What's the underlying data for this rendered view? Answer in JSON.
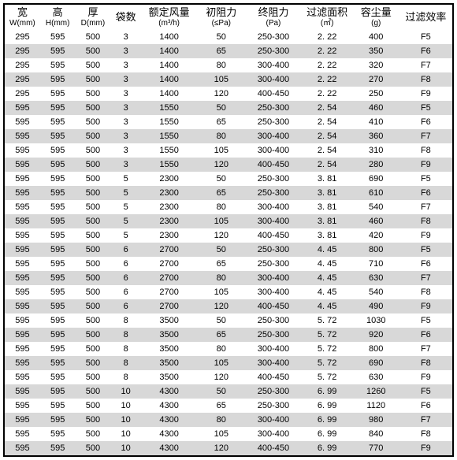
{
  "table": {
    "row_odd_bg": "#ffffff",
    "row_even_bg": "#d8d8d8",
    "border_color": "#000000",
    "columns": [
      {
        "key": "w",
        "cn": "宽",
        "sub": "W(mm)"
      },
      {
        "key": "h",
        "cn": "高",
        "sub": "H(mm)"
      },
      {
        "key": "d",
        "cn": "厚",
        "sub": "D(mm)"
      },
      {
        "key": "bags",
        "cn": "袋数",
        "sub": ""
      },
      {
        "key": "flow",
        "cn": "额定风量",
        "sub": "(m³/h)"
      },
      {
        "key": "ires",
        "cn": "初阻力",
        "sub": "(≤Pa)"
      },
      {
        "key": "fres",
        "cn": "终阻力",
        "sub": "(Pa)"
      },
      {
        "key": "area",
        "cn": "过滤面积",
        "sub": "(㎡)"
      },
      {
        "key": "dust",
        "cn": "容尘量",
        "sub": "(g)"
      },
      {
        "key": "eff",
        "cn": "过滤效率",
        "sub": ""
      }
    ],
    "rows": [
      [
        "295",
        "595",
        "500",
        "3",
        "1400",
        "50",
        "250-300",
        "2. 22",
        "400",
        "F5"
      ],
      [
        "295",
        "595",
        "500",
        "3",
        "1400",
        "65",
        "250-300",
        "2. 22",
        "350",
        "F6"
      ],
      [
        "295",
        "595",
        "500",
        "3",
        "1400",
        "80",
        "300-400",
        "2. 22",
        "320",
        "F7"
      ],
      [
        "295",
        "595",
        "500",
        "3",
        "1400",
        "105",
        "300-400",
        "2. 22",
        "270",
        "F8"
      ],
      [
        "295",
        "595",
        "500",
        "3",
        "1400",
        "120",
        "400-450",
        "2. 22",
        "250",
        "F9"
      ],
      [
        "595",
        "595",
        "500",
        "3",
        "1550",
        "50",
        "250-300",
        "2. 54",
        "460",
        "F5"
      ],
      [
        "595",
        "595",
        "500",
        "3",
        "1550",
        "65",
        "250-300",
        "2. 54",
        "410",
        "F6"
      ],
      [
        "595",
        "595",
        "500",
        "3",
        "1550",
        "80",
        "300-400",
        "2. 54",
        "360",
        "F7"
      ],
      [
        "595",
        "595",
        "500",
        "3",
        "1550",
        "105",
        "300-400",
        "2. 54",
        "310",
        "F8"
      ],
      [
        "595",
        "595",
        "500",
        "3",
        "1550",
        "120",
        "400-450",
        "2. 54",
        "280",
        "F9"
      ],
      [
        "595",
        "595",
        "500",
        "5",
        "2300",
        "50",
        "250-300",
        "3. 81",
        "690",
        "F5"
      ],
      [
        "595",
        "595",
        "500",
        "5",
        "2300",
        "65",
        "250-300",
        "3. 81",
        "610",
        "F6"
      ],
      [
        "595",
        "595",
        "500",
        "5",
        "2300",
        "80",
        "300-400",
        "3. 81",
        "540",
        "F7"
      ],
      [
        "595",
        "595",
        "500",
        "5",
        "2300",
        "105",
        "300-400",
        "3. 81",
        "460",
        "F8"
      ],
      [
        "595",
        "595",
        "500",
        "5",
        "2300",
        "120",
        "400-450",
        "3. 81",
        "420",
        "F9"
      ],
      [
        "595",
        "595",
        "500",
        "6",
        "2700",
        "50",
        "250-300",
        "4. 45",
        "800",
        "F5"
      ],
      [
        "595",
        "595",
        "500",
        "6",
        "2700",
        "65",
        "250-300",
        "4. 45",
        "710",
        "F6"
      ],
      [
        "595",
        "595",
        "500",
        "6",
        "2700",
        "80",
        "300-400",
        "4. 45",
        "630",
        "F7"
      ],
      [
        "595",
        "595",
        "500",
        "6",
        "2700",
        "105",
        "300-400",
        "4. 45",
        "540",
        "F8"
      ],
      [
        "595",
        "595",
        "500",
        "6",
        "2700",
        "120",
        "400-450",
        "4. 45",
        "490",
        "F9"
      ],
      [
        "595",
        "595",
        "500",
        "8",
        "3500",
        "50",
        "250-300",
        "5. 72",
        "1030",
        "F5"
      ],
      [
        "595",
        "595",
        "500",
        "8",
        "3500",
        "65",
        "250-300",
        "5. 72",
        "920",
        "F6"
      ],
      [
        "595",
        "595",
        "500",
        "8",
        "3500",
        "80",
        "300-400",
        "5. 72",
        "800",
        "F7"
      ],
      [
        "595",
        "595",
        "500",
        "8",
        "3500",
        "105",
        "300-400",
        "5. 72",
        "690",
        "F8"
      ],
      [
        "595",
        "595",
        "500",
        "8",
        "3500",
        "120",
        "400-450",
        "5. 72",
        "630",
        "F9"
      ],
      [
        "595",
        "595",
        "500",
        "10",
        "4300",
        "50",
        "250-300",
        "6. 99",
        "1260",
        "F5"
      ],
      [
        "595",
        "595",
        "500",
        "10",
        "4300",
        "65",
        "250-300",
        "6. 99",
        "1120",
        "F6"
      ],
      [
        "595",
        "595",
        "500",
        "10",
        "4300",
        "80",
        "300-400",
        "6. 99",
        "980",
        "F7"
      ],
      [
        "595",
        "595",
        "500",
        "10",
        "4300",
        "105",
        "300-400",
        "6. 99",
        "840",
        "F8"
      ],
      [
        "595",
        "595",
        "500",
        "10",
        "4300",
        "120",
        "400-450",
        "6. 99",
        "770",
        "F9"
      ]
    ]
  }
}
